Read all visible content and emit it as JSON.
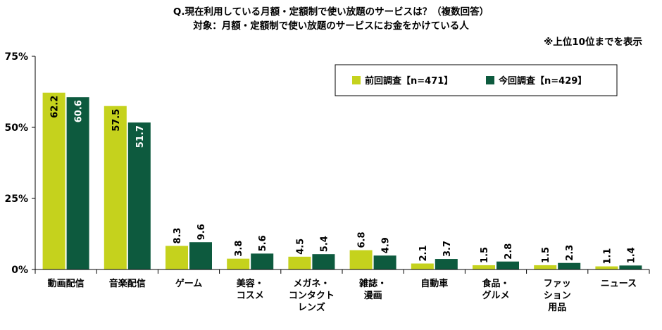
{
  "chart_data": {
    "type": "bar",
    "title": "Q.現在利用している月額・定額制で使い放題のサービスは？（複数回答）",
    "subtitle": "対象：月額・定額制で使い放題のサービスにお金をかけている人",
    "note": "※上位10位までを表示",
    "categories": [
      [
        "動画配信"
      ],
      [
        "音楽配信"
      ],
      [
        "ゲーム"
      ],
      [
        "美容・",
        "コスメ"
      ],
      [
        "メガネ・",
        "コンタクト",
        "レンズ"
      ],
      [
        "雑誌・",
        "漫画"
      ],
      [
        "自動車"
      ],
      [
        "食品・",
        "グルメ"
      ],
      [
        "ファッ",
        "ション",
        "用品"
      ],
      [
        "ニュース"
      ]
    ],
    "series": [
      {
        "name": "前回調査【n=471】",
        "color": "#c5d21d",
        "values": [
          62.2,
          57.5,
          8.3,
          3.8,
          4.5,
          6.8,
          2.1,
          1.5,
          1.5,
          1.1
        ]
      },
      {
        "name": "今回調査【n=429】",
        "color": "#0d5a3e",
        "values": [
          60.6,
          51.7,
          9.6,
          5.6,
          5.4,
          4.9,
          3.7,
          2.8,
          2.3,
          1.4
        ]
      }
    ],
    "value_labels": [
      [
        "62.2",
        "57.5",
        "8.3",
        "3.8",
        "4.5",
        "6.8",
        "2.1",
        "1.5",
        "1.5",
        "1.1"
      ],
      [
        "60.6",
        "51.7",
        "9.6",
        "5.6",
        "5.4",
        "4.9",
        "3.7",
        "2.8",
        "2.3",
        "1.4"
      ]
    ],
    "ylim": [
      0,
      75
    ],
    "yticks": [
      0,
      25,
      50,
      75
    ],
    "ytick_labels": [
      "0%",
      "25%",
      "50%",
      "75%"
    ],
    "grid": false,
    "legend_position": "top-right",
    "value_label_rotation": "vertical"
  }
}
